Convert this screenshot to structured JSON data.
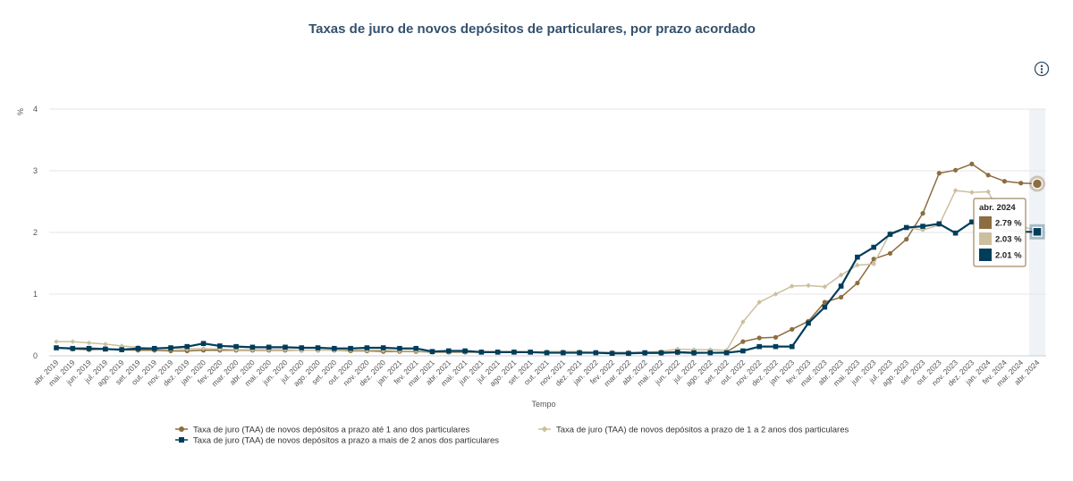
{
  "chart_data": {
    "type": "line",
    "title": "Taxas de juro de novos depósitos de particulares, por prazo acordado",
    "xlabel": "Tempo",
    "ylabel": "%",
    "ylim": [
      0,
      4
    ],
    "yticks": [
      "0",
      "1",
      "2",
      "3",
      "4"
    ],
    "grid": true,
    "legend_position": "bottom",
    "categories": [
      "abr. 2019",
      "mai. 2019",
      "jun. 2019",
      "jul. 2019",
      "ago. 2019",
      "set. 2019",
      "out. 2019",
      "nov. 2019",
      "dez. 2019",
      "jan. 2020",
      "fev. 2020",
      "mar. 2020",
      "abr. 2020",
      "mai. 2020",
      "jun. 2020",
      "jul. 2020",
      "ago. 2020",
      "set. 2020",
      "out. 2020",
      "nov. 2020",
      "dez. 2020",
      "jan. 2021",
      "fev. 2021",
      "mar. 2021",
      "abr. 2021",
      "mai. 2021",
      "jun. 2021",
      "jul. 2021",
      "ago. 2021",
      "set. 2021",
      "out. 2021",
      "nov. 2021",
      "dez. 2021",
      "jan. 2022",
      "fev. 2022",
      "mar. 2022",
      "abr. 2022",
      "mai. 2022",
      "jun. 2022",
      "jul. 2022",
      "ago. 2022",
      "set. 2022",
      "out. 2022",
      "nov. 2022",
      "dez. 2022",
      "jan. 2023",
      "fev. 2023",
      "mar. 2023",
      "abr. 2023",
      "mai. 2023",
      "jun. 2023",
      "jul. 2023",
      "ago. 2023",
      "set. 2023",
      "out. 2023",
      "nov. 2023",
      "dez. 2023",
      "jan. 2024",
      "fev. 2024",
      "mar. 2024",
      "abr. 2024"
    ],
    "series": [
      {
        "name": "Taxa de juro (TAA) de novos depósitos a prazo até 1 ano dos particulares",
        "color": "#8C6D3F",
        "marker": "circle",
        "values": [
          0.13,
          0.11,
          0.1,
          0.11,
          0.1,
          0.09,
          0.09,
          0.08,
          0.08,
          0.09,
          0.09,
          0.09,
          0.09,
          0.09,
          0.09,
          0.09,
          0.09,
          0.09,
          0.08,
          0.08,
          0.07,
          0.07,
          0.07,
          0.06,
          0.06,
          0.06,
          0.06,
          0.06,
          0.06,
          0.06,
          0.05,
          0.05,
          0.05,
          0.05,
          0.04,
          0.04,
          0.04,
          0.04,
          0.05,
          0.04,
          0.05,
          0.06,
          0.23,
          0.29,
          0.3,
          0.43,
          0.56,
          0.87,
          0.95,
          1.18,
          1.57,
          1.66,
          1.89,
          2.31,
          2.96,
          3.01,
          3.11,
          2.93,
          2.83,
          2.8,
          2.79
        ]
      },
      {
        "name": "Taxa de juro (TAA) de novos depósitos a prazo de 1 a 2 anos dos particulares",
        "color": "#CDBF9E",
        "marker": "diamond",
        "values": [
          0.23,
          0.23,
          0.21,
          0.19,
          0.16,
          0.14,
          0.12,
          0.12,
          0.11,
          0.12,
          0.11,
          0.1,
          0.1,
          0.1,
          0.1,
          0.09,
          0.09,
          0.09,
          0.09,
          0.09,
          0.09,
          0.08,
          0.08,
          0.07,
          0.07,
          0.07,
          0.07,
          0.07,
          0.07,
          0.06,
          0.07,
          0.07,
          0.07,
          0.06,
          0.06,
          0.06,
          0.06,
          0.07,
          0.11,
          0.1,
          0.1,
          0.09,
          0.55,
          0.87,
          1.0,
          1.13,
          1.14,
          1.12,
          1.31,
          1.47,
          1.49,
          1.99,
          2.08,
          2.04,
          2.12,
          2.68,
          2.65,
          2.66,
          2.17,
          2.1,
          2.03
        ]
      },
      {
        "name": "Taxa de juro (TAA) de novos depósitos a prazo a mais de 2 anos dos particulares",
        "color": "#003D5B",
        "marker": "square",
        "values": [
          0.13,
          0.12,
          0.12,
          0.11,
          0.1,
          0.12,
          0.12,
          0.13,
          0.15,
          0.2,
          0.16,
          0.15,
          0.14,
          0.14,
          0.14,
          0.13,
          0.13,
          0.12,
          0.12,
          0.13,
          0.13,
          0.12,
          0.12,
          0.07,
          0.08,
          0.08,
          0.06,
          0.06,
          0.06,
          0.06,
          0.05,
          0.05,
          0.05,
          0.05,
          0.04,
          0.04,
          0.05,
          0.05,
          0.06,
          0.05,
          0.05,
          0.05,
          0.08,
          0.15,
          0.15,
          0.15,
          0.53,
          0.79,
          1.13,
          1.6,
          1.76,
          1.97,
          2.08,
          2.1,
          2.14,
          1.99,
          2.17,
          2.08,
          2.04,
          2.01,
          2.01
        ]
      }
    ],
    "tooltip": {
      "category": "abr. 2024",
      "items": [
        {
          "label": "2.79 %",
          "color": "#8C6D3F"
        },
        {
          "label": "2.03 %",
          "color": "#CDBF9E"
        },
        {
          "label": "2.01 %",
          "color": "#003D5B"
        }
      ]
    }
  },
  "ui": {
    "menu_icon": "more-vertical-icon",
    "menu_glyph": "⋮",
    "accent_color": "#34516D"
  }
}
